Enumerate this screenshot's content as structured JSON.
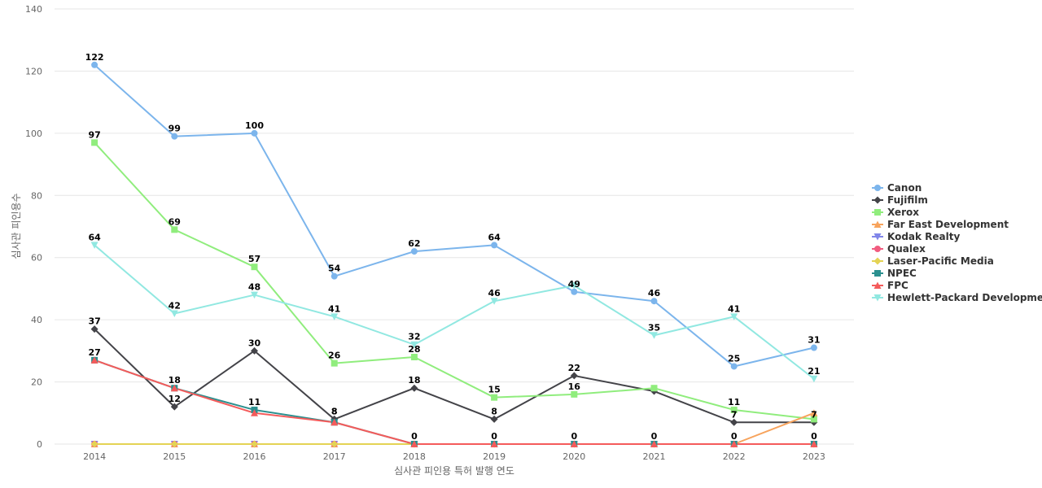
{
  "chart_data": {
    "type": "line",
    "title": "",
    "xlabel": "심사관 피인용 특허 발행 연도",
    "ylabel": "심사관 피인용수",
    "x": [
      "2014",
      "2015",
      "2016",
      "2017",
      "2018",
      "2019",
      "2020",
      "2021",
      "2022",
      "2023"
    ],
    "ylim": [
      0,
      140
    ],
    "yticks": [
      0,
      20,
      40,
      60,
      80,
      100,
      120,
      140
    ],
    "grid": true,
    "legend_position": "right",
    "series": [
      {
        "name": "Canon",
        "color": "#7cb5ec",
        "marker": "circle",
        "values": [
          122,
          99,
          100,
          54,
          62,
          64,
          49,
          46,
          25,
          31
        ],
        "labels": [
          true,
          true,
          true,
          true,
          true,
          true,
          true,
          true,
          true,
          true
        ]
      },
      {
        "name": "Fujifilm",
        "color": "#434348",
        "marker": "diamond",
        "values": [
          37,
          12,
          30,
          8,
          18,
          8,
          22,
          17,
          7,
          7
        ],
        "labels": [
          true,
          true,
          true,
          true,
          true,
          true,
          true,
          false,
          true,
          false
        ]
      },
      {
        "name": "Xerox",
        "color": "#90ed7d",
        "marker": "square",
        "values": [
          97,
          69,
          57,
          26,
          28,
          15,
          16,
          18,
          11,
          8
        ],
        "labels": [
          true,
          true,
          true,
          true,
          true,
          true,
          true,
          false,
          true,
          false
        ]
      },
      {
        "name": "Far East Development",
        "color": "#f7a35c",
        "marker": "triangle",
        "values": [
          0,
          0,
          0,
          0,
          0,
          0,
          0,
          0,
          0,
          10
        ],
        "labels": [
          false,
          false,
          false,
          false,
          false,
          false,
          false,
          false,
          false,
          false
        ]
      },
      {
        "name": "Kodak Realty",
        "color": "#8085e9",
        "marker": "triangle-down",
        "values": [
          0,
          0,
          0,
          0,
          0,
          0,
          0,
          0,
          0,
          0
        ],
        "labels": [
          false,
          false,
          false,
          false,
          false,
          false,
          false,
          false,
          false,
          false
        ]
      },
      {
        "name": "Qualex",
        "color": "#f15c80",
        "marker": "circle",
        "values": [
          0,
          0,
          0,
          0,
          0,
          0,
          0,
          0,
          0,
          0
        ],
        "labels": [
          false,
          false,
          false,
          false,
          false,
          false,
          false,
          false,
          false,
          false
        ]
      },
      {
        "name": "Laser-Pacific Media",
        "color": "#e4d354",
        "marker": "diamond",
        "values": [
          0,
          0,
          0,
          0,
          0,
          0,
          0,
          0,
          0,
          0
        ],
        "labels": [
          false,
          false,
          false,
          false,
          false,
          false,
          false,
          false,
          false,
          false
        ]
      },
      {
        "name": "NPEC",
        "color": "#2b908f",
        "marker": "square",
        "values": [
          27,
          18,
          11,
          7,
          0,
          0,
          0,
          0,
          0,
          0
        ],
        "labels": [
          true,
          true,
          true,
          false,
          true,
          true,
          true,
          true,
          true,
          true
        ]
      },
      {
        "name": "FPC",
        "color": "#f45b5b",
        "marker": "triangle",
        "values": [
          27,
          18,
          10,
          7,
          0,
          0,
          0,
          0,
          0,
          0
        ],
        "labels": [
          false,
          false,
          false,
          false,
          false,
          false,
          false,
          false,
          false,
          false
        ]
      },
      {
        "name": "Hewlett-Packard Development",
        "color": "#91e8e1",
        "marker": "triangle-down",
        "values": [
          64,
          42,
          48,
          41,
          32,
          46,
          51,
          35,
          41,
          21
        ],
        "labels": [
          true,
          true,
          true,
          true,
          true,
          true,
          false,
          true,
          true,
          true
        ]
      }
    ],
    "extra_labels": [
      {
        "x": "2017",
        "text": "8"
      },
      {
        "x": "2023",
        "text": "7"
      }
    ]
  }
}
